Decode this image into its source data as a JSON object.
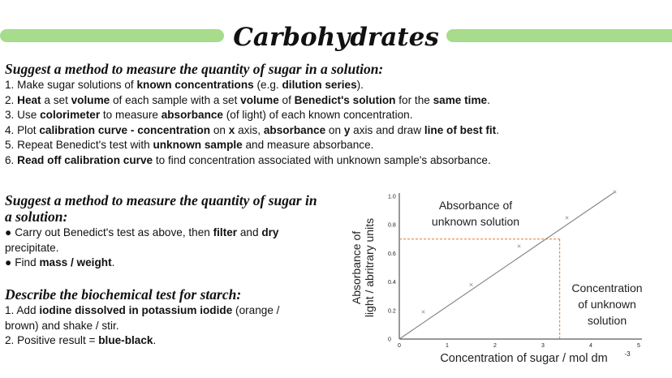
{
  "title": "Carbohydrates",
  "section1": {
    "question": "Suggest a method to measure the quantity of sugar in a solution:",
    "steps": [
      [
        [
          "1. Make sugar solutions of ",
          false
        ],
        [
          "known concentrations",
          true
        ],
        [
          " (e.g. ",
          false
        ],
        [
          "dilution series",
          true
        ],
        [
          ").",
          false
        ]
      ],
      [
        [
          "2. ",
          false
        ],
        [
          "Heat",
          true
        ],
        [
          " a set ",
          false
        ],
        [
          "volume",
          true
        ],
        [
          " of each sample with a set ",
          false
        ],
        [
          "volume",
          true
        ],
        [
          " of ",
          false
        ],
        [
          "Benedict's solution",
          true
        ],
        [
          " for the ",
          false
        ],
        [
          "same time",
          true
        ],
        [
          ".",
          false
        ]
      ],
      [
        [
          "3. Use ",
          false
        ],
        [
          "colorimeter",
          true
        ],
        [
          " to measure ",
          false
        ],
        [
          "absorbance",
          true
        ],
        [
          " (of light) of each known concentration.",
          false
        ]
      ],
      [
        [
          "4. Plot ",
          false
        ],
        [
          "calibration curve - concentration",
          true
        ],
        [
          " on ",
          false
        ],
        [
          "x",
          true
        ],
        [
          " axis, ",
          false
        ],
        [
          "absorbance",
          true
        ],
        [
          " on ",
          false
        ],
        [
          "y",
          true
        ],
        [
          " axis and draw ",
          false
        ],
        [
          "line of best fit",
          true
        ],
        [
          ".",
          false
        ]
      ],
      [
        [
          "5. Repeat Benedict's test with ",
          false
        ],
        [
          "unknown sample",
          true
        ],
        [
          " and measure absorbance.",
          false
        ]
      ],
      [
        [
          "6. ",
          false
        ],
        [
          "Read off calibration curve",
          true
        ],
        [
          " to find concentration associated with unknown sample's absorbance.",
          false
        ]
      ]
    ]
  },
  "section2": {
    "question_line1": "Suggest a method to measure the quantity of sugar in",
    "question_line2": "a solution:",
    "lines": [
      [
        [
          "Carry out Benedict's test as above, then ",
          false
        ],
        [
          "filter",
          true
        ],
        [
          " and ",
          false
        ],
        [
          "dry",
          true
        ]
      ],
      [
        [
          "precipitate.",
          false
        ]
      ],
      [
        [
          "Find ",
          false
        ],
        [
          "mass / weight",
          true
        ],
        [
          ".",
          false
        ]
      ]
    ]
  },
  "section3": {
    "question": "Describe the biochemical test for starch:",
    "lines": [
      [
        [
          "1. Add ",
          false
        ],
        [
          "iodine dissolved in potassium iodide",
          true
        ],
        [
          " (orange /",
          false
        ]
      ],
      [
        [
          "brown) and shake / stir.",
          false
        ]
      ],
      [
        [
          "2. Positive result = ",
          false
        ],
        [
          "blue-black",
          true
        ],
        [
          ".",
          false
        ]
      ]
    ]
  },
  "chart_data": {
    "type": "line",
    "ylabel_line1": "Absorbance of",
    "ylabel_line2": "light / abritrary units",
    "xlabel": "Concentration of sugar / mol dm",
    "xlabel_superscript": "-3",
    "xlim": [
      0,
      5
    ],
    "ylim": [
      0,
      1.0
    ],
    "x_ticks": [
      "0",
      "1",
      "2",
      "3",
      "4",
      "5"
    ],
    "y_ticks": [
      "0",
      "0.2",
      "0.4",
      "0.6",
      "0.8",
      "1.0"
    ],
    "points": [
      {
        "x": 0.5,
        "y": 0.19
      },
      {
        "x": 1.5,
        "y": 0.38
      },
      {
        "x": 2.5,
        "y": 0.65
      },
      {
        "x": 3.5,
        "y": 0.85
      },
      {
        "x": 4.5,
        "y": 1.03
      }
    ],
    "best_fit": [
      {
        "x": 0,
        "y": 0.0
      },
      {
        "x": 4.5,
        "y": 1.03
      }
    ],
    "unknown": {
      "x": 3.35,
      "y": 0.7
    },
    "annotation_absorbance": [
      "Absorbance of",
      "unknown solution"
    ],
    "annotation_concentration": [
      "Concentration",
      "of unknown",
      "solution"
    ],
    "line_color": "#888888",
    "marker_color": "#888888",
    "dashed_color": "#e8772e",
    "grid": false
  }
}
